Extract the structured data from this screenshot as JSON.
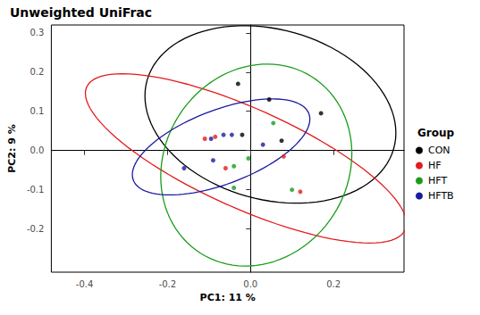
{
  "chart_data": {
    "type": "scatter",
    "title": "Unweighted UniFrac",
    "x_label": "PC1: 11 %",
    "y_label": "PC2: 9 %",
    "legend_title": "Group",
    "legend": "right",
    "grid": false,
    "marker": "circle",
    "xlim": [
      -0.48,
      0.37
    ],
    "ylim": [
      -0.31,
      0.32
    ],
    "xticks": [
      -0.4,
      -0.2,
      {
        "value": 0,
        "label": "0.0"
      },
      0.2
    ],
    "yticks": [
      -0.2,
      -0.1,
      {
        "value": 0,
        "label": "0.0"
      },
      0.1,
      0.2,
      0.3
    ],
    "series": [
      {
        "name": "CON",
        "color": "#000000",
        "x": [
          -0.03,
          0.045,
          0.17,
          -0.02,
          0.075
        ],
        "y": [
          0.17,
          0.13,
          0.095,
          0.04,
          0.025
        ]
      },
      {
        "name": "HF",
        "color": "#e41a1c",
        "x": [
          -0.11,
          -0.085,
          -0.06,
          0.08,
          0.12
        ],
        "y": [
          0.03,
          0.035,
          -0.045,
          -0.015,
          -0.105
        ]
      },
      {
        "name": "HFT",
        "color": "#1a9c1a",
        "x": [
          0.055,
          -0.005,
          -0.04,
          -0.04,
          0.1
        ],
        "y": [
          0.07,
          -0.02,
          -0.04,
          -0.095,
          -0.1
        ]
      },
      {
        "name": "HFTB",
        "color": "#1a1aa0",
        "x": [
          -0.095,
          -0.065,
          -0.045,
          -0.09,
          -0.16,
          0.03
        ],
        "y": [
          0.03,
          0.04,
          0.04,
          -0.025,
          -0.045,
          0.015
        ]
      }
    ]
  }
}
